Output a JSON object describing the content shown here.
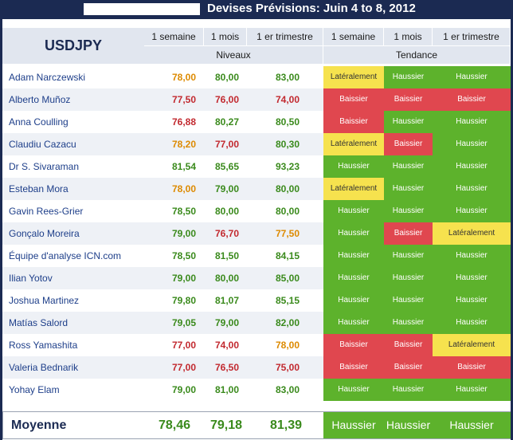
{
  "title": "Devises Prévisions: Juin 4 to 8, 2012",
  "pair": "USDJPY",
  "headers": {
    "levels": [
      "1 semaine",
      "1 mois",
      "1 er trimestre"
    ],
    "trends": [
      "1 semaine",
      "1 mois",
      "1 er trimestre"
    ],
    "levels_group": "Niveaux",
    "trends_group": "Tendance"
  },
  "colors": {
    "header_bg": "#1b2a52",
    "green": "#5db22c",
    "red": "#e0474f",
    "yellow": "#f6e24e"
  },
  "rows": [
    {
      "name": "Adam Narczewski",
      "levels": [
        "78,00",
        "80,00",
        "83,00"
      ],
      "level_colors": [
        "orange",
        "green",
        "green"
      ],
      "trends": [
        "Latéralement",
        "Haussier",
        "Haussier"
      ]
    },
    {
      "name": "Alberto Muñoz",
      "levels": [
        "77,50",
        "76,00",
        "74,00"
      ],
      "level_colors": [
        "red",
        "red",
        "red"
      ],
      "trends": [
        "Baissier",
        "Baissier",
        "Baissier"
      ]
    },
    {
      "name": "Anna Coulling",
      "levels": [
        "76,88",
        "80,27",
        "80,50"
      ],
      "level_colors": [
        "red",
        "green",
        "green"
      ],
      "trends": [
        "Baissier",
        "Haussier",
        "Haussier"
      ]
    },
    {
      "name": "Claudiu Cazacu",
      "levels": [
        "78,20",
        "77,00",
        "80,30"
      ],
      "level_colors": [
        "orange",
        "red",
        "green"
      ],
      "trends": [
        "Latéralement",
        "Baissier",
        "Haussier"
      ]
    },
    {
      "name": "Dr S. Sivaraman",
      "levels": [
        "81,54",
        "85,65",
        "93,23"
      ],
      "level_colors": [
        "green",
        "green",
        "green"
      ],
      "trends": [
        "Haussier",
        "Haussier",
        "Haussier"
      ]
    },
    {
      "name": "Esteban Mora",
      "levels": [
        "78,00",
        "79,00",
        "80,00"
      ],
      "level_colors": [
        "orange",
        "green",
        "green"
      ],
      "trends": [
        "Latéralement",
        "Haussier",
        "Haussier"
      ]
    },
    {
      "name": "Gavin Rees-Grier",
      "levels": [
        "78,50",
        "80,00",
        "80,00"
      ],
      "level_colors": [
        "green",
        "green",
        "green"
      ],
      "trends": [
        "Haussier",
        "Haussier",
        "Haussier"
      ]
    },
    {
      "name": "Gonçalo Moreira",
      "levels": [
        "79,00",
        "76,70",
        "77,50"
      ],
      "level_colors": [
        "green",
        "red",
        "orange"
      ],
      "trends": [
        "Haussier",
        "Baissier",
        "Latéralement"
      ]
    },
    {
      "name": "Équipe d'analyse ICN.com",
      "levels": [
        "78,50",
        "81,50",
        "84,15"
      ],
      "level_colors": [
        "green",
        "green",
        "green"
      ],
      "trends": [
        "Haussier",
        "Haussier",
        "Haussier"
      ]
    },
    {
      "name": "Ilian Yotov",
      "levels": [
        "79,00",
        "80,00",
        "85,00"
      ],
      "level_colors": [
        "green",
        "green",
        "green"
      ],
      "trends": [
        "Haussier",
        "Haussier",
        "Haussier"
      ]
    },
    {
      "name": "Joshua Martinez",
      "levels": [
        "79,80",
        "81,07",
        "85,15"
      ],
      "level_colors": [
        "green",
        "green",
        "green"
      ],
      "trends": [
        "Haussier",
        "Haussier",
        "Haussier"
      ]
    },
    {
      "name": "Matías Salord",
      "levels": [
        "79,05",
        "79,00",
        "82,00"
      ],
      "level_colors": [
        "green",
        "green",
        "green"
      ],
      "trends": [
        "Haussier",
        "Haussier",
        "Haussier"
      ]
    },
    {
      "name": "Ross Yamashita",
      "levels": [
        "77,00",
        "74,00",
        "78,00"
      ],
      "level_colors": [
        "red",
        "red",
        "orange"
      ],
      "trends": [
        "Baissier",
        "Baissier",
        "Latéralement"
      ]
    },
    {
      "name": "Valeria Bednarik",
      "levels": [
        "77,00",
        "76,50",
        "75,00"
      ],
      "level_colors": [
        "red",
        "red",
        "red"
      ],
      "trends": [
        "Baissier",
        "Baissier",
        "Baissier"
      ]
    },
    {
      "name": "Yohay Elam",
      "levels": [
        "79,00",
        "81,00",
        "83,00"
      ],
      "level_colors": [
        "green",
        "green",
        "green"
      ],
      "trends": [
        "Haussier",
        "Haussier",
        "Haussier"
      ]
    }
  ],
  "average": {
    "label": "Moyenne",
    "levels": [
      "78,46",
      "79,18",
      "81,39"
    ],
    "trends": [
      "Haussier",
      "Haussier",
      "Haussier"
    ]
  }
}
